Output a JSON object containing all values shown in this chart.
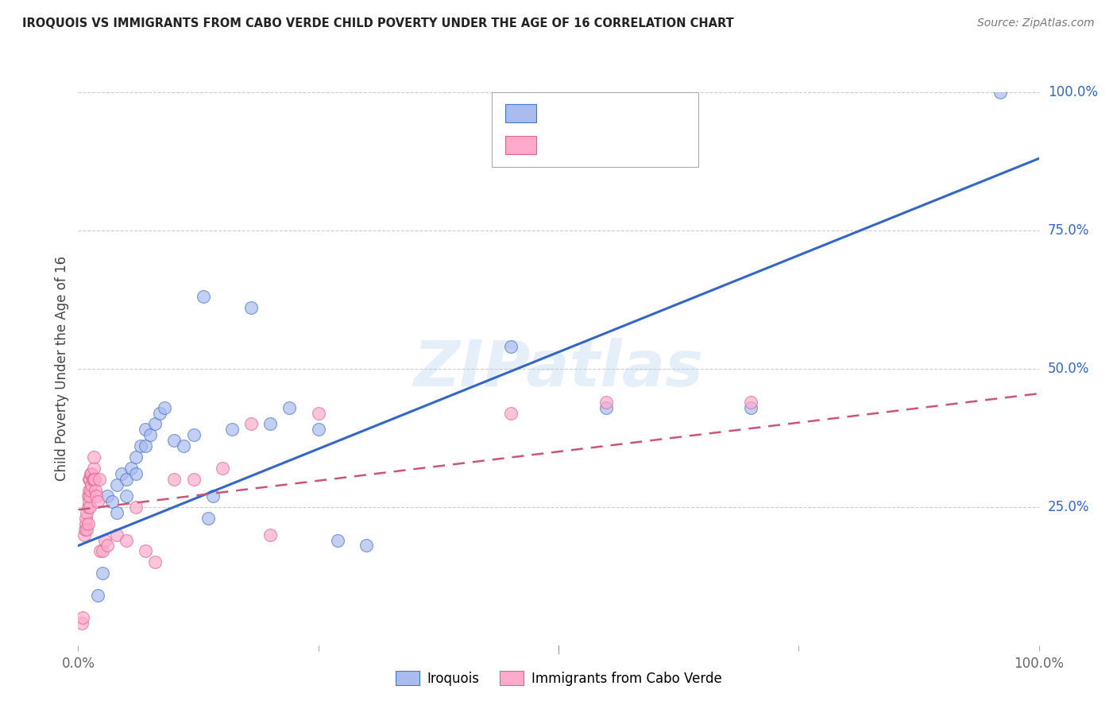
{
  "title": "IROQUOIS VS IMMIGRANTS FROM CABO VERDE CHILD POVERTY UNDER THE AGE OF 16 CORRELATION CHART",
  "source": "Source: ZipAtlas.com",
  "ylabel": "Child Poverty Under the Age of 16",
  "xlim": [
    0,
    1
  ],
  "ylim": [
    0,
    1
  ],
  "xtick_pos": [
    0.0,
    0.25,
    0.5,
    0.75,
    1.0
  ],
  "xtick_labels": [
    "0.0%",
    "",
    "",
    "",
    "100.0%"
  ],
  "ytick_labels_right": [
    "25.0%",
    "50.0%",
    "75.0%",
    "100.0%"
  ],
  "ytick_positions_right": [
    0.25,
    0.5,
    0.75,
    1.0
  ],
  "watermark": "ZIPatlas",
  "blue_fill": "#AABBEE",
  "pink_fill": "#FFAACC",
  "blue_edge": "#4477CC",
  "pink_edge": "#DD6688",
  "blue_line_color": "#3366CC",
  "pink_line_color": "#CC5577",
  "iroquois_scatter_x": [
    0.02,
    0.025,
    0.03,
    0.035,
    0.04,
    0.04,
    0.045,
    0.05,
    0.05,
    0.055,
    0.06,
    0.06,
    0.065,
    0.07,
    0.07,
    0.075,
    0.08,
    0.085,
    0.09,
    0.1,
    0.11,
    0.12,
    0.13,
    0.135,
    0.14,
    0.16,
    0.18,
    0.2,
    0.22,
    0.25,
    0.27,
    0.3,
    0.45,
    0.55,
    0.7,
    0.96
  ],
  "iroquois_scatter_y": [
    0.09,
    0.13,
    0.27,
    0.26,
    0.24,
    0.29,
    0.31,
    0.27,
    0.3,
    0.32,
    0.31,
    0.34,
    0.36,
    0.36,
    0.39,
    0.38,
    0.4,
    0.42,
    0.43,
    0.37,
    0.36,
    0.38,
    0.63,
    0.23,
    0.27,
    0.39,
    0.61,
    0.4,
    0.43,
    0.39,
    0.19,
    0.18,
    0.54,
    0.43,
    0.43,
    1.0
  ],
  "cabo_scatter_x": [
    0.004,
    0.005,
    0.006,
    0.007,
    0.008,
    0.008,
    0.009,
    0.009,
    0.01,
    0.01,
    0.01,
    0.011,
    0.011,
    0.011,
    0.012,
    0.012,
    0.012,
    0.013,
    0.013,
    0.014,
    0.014,
    0.015,
    0.016,
    0.016,
    0.016,
    0.017,
    0.018,
    0.019,
    0.02,
    0.022,
    0.023,
    0.025,
    0.028,
    0.03,
    0.04,
    0.05,
    0.06,
    0.07,
    0.08,
    0.1,
    0.12,
    0.15,
    0.18,
    0.2,
    0.25,
    0.45,
    0.55,
    0.7
  ],
  "cabo_scatter_y": [
    0.04,
    0.05,
    0.2,
    0.21,
    0.22,
    0.23,
    0.24,
    0.21,
    0.22,
    0.25,
    0.27,
    0.26,
    0.28,
    0.3,
    0.25,
    0.27,
    0.3,
    0.28,
    0.31,
    0.29,
    0.31,
    0.3,
    0.3,
    0.32,
    0.34,
    0.3,
    0.28,
    0.27,
    0.26,
    0.3,
    0.17,
    0.17,
    0.19,
    0.18,
    0.2,
    0.19,
    0.25,
    0.17,
    0.15,
    0.3,
    0.3,
    0.32,
    0.4,
    0.2,
    0.42,
    0.42,
    0.44,
    0.44
  ],
  "blue_line_x": [
    0.0,
    1.0
  ],
  "blue_line_y": [
    0.18,
    0.88
  ],
  "pink_line_x": [
    0.0,
    1.0
  ],
  "pink_line_y": [
    0.245,
    0.455
  ],
  "background_color": "#ffffff",
  "grid_color": "#cccccc",
  "bottom_legend_labels": [
    "Iroquois",
    "Immigrants from Cabo Verde"
  ]
}
